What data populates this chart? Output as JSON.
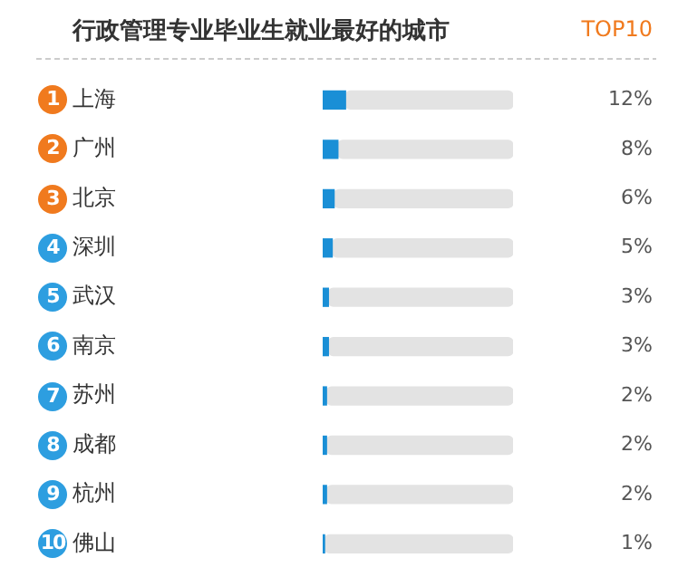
{
  "chart_data": {
    "type": "bar",
    "orientation": "horizontal",
    "title": "行政管理专业毕业生就业最好的城市",
    "categories": [
      "上海",
      "广州",
      "北京",
      "深圳",
      "武汉",
      "南京",
      "苏州",
      "成都",
      "杭州",
      "佛山"
    ],
    "series": [
      {
        "color": "#1a8fd6",
        "values": [
          12,
          8,
          6,
          5,
          3,
          3,
          2,
          2,
          2,
          1
        ],
        "value_labels": [
          "12%",
          "8%",
          "6%",
          "5%",
          "3%",
          "3%",
          "2%",
          "2%",
          "2%",
          "1%"
        ]
      },
      {
        "color": "#e3e3e3",
        "values": [
          88,
          92,
          94,
          95,
          97,
          97,
          98,
          98,
          98,
          99
        ]
      }
    ],
    "stacked": true,
    "xlim": [
      0,
      100
    ],
    "legend": false,
    "tick_labels": "y",
    "annotations": [
      "TOP10",
      "1",
      "2",
      "3",
      "4",
      "5",
      "6",
      "7",
      "8",
      "9",
      "10"
    ]
  }
}
